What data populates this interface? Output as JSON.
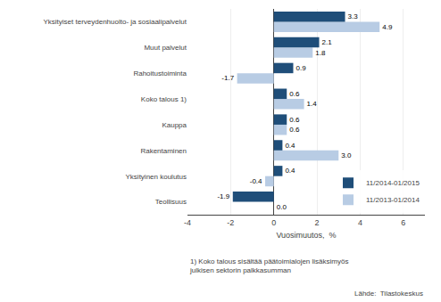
{
  "chart_data": {
    "type": "bar",
    "orientation": "horizontal",
    "categories": [
      "Teollisuus",
      "Yksityinen koulutus",
      "Rakentaminen",
      "Kauppa",
      "Koko talous 1)",
      "Rahoitustoiminta",
      "Muut palvelut",
      "Yksityiset terveydenhuolto- ja sosiaalipalvelut"
    ],
    "series": [
      {
        "name": "11/2014-01/2015",
        "color": "#1F4E79",
        "values": [
          -1.9,
          0.4,
          0.4,
          0.6,
          0.6,
          0.9,
          2.1,
          3.3
        ]
      },
      {
        "name": "11/2013-01/2014",
        "color": "#B8CCE4",
        "values": [
          0.0,
          -0.4,
          3.0,
          0.6,
          1.4,
          -1.7,
          1.8,
          4.9
        ],
        "value_labels": [
          "0.0",
          "-0.4",
          "3.0",
          "0.6",
          "1.4",
          "-1.7",
          "1.8",
          "4.9"
        ]
      }
    ],
    "xlim": [
      -4,
      7
    ],
    "xticks": [
      -4,
      -2,
      0,
      2,
      4,
      6
    ],
    "xlabel": "Vuosimuutos,  %",
    "grid": true,
    "data_labels": true,
    "legend": "lower right",
    "annotations": [
      "1) Koko talous sisältää päätoimialojen lisäksimyös\njulkisen sektorin palkkasumman",
      "Lähde:  Tilastokeskus"
    ]
  }
}
